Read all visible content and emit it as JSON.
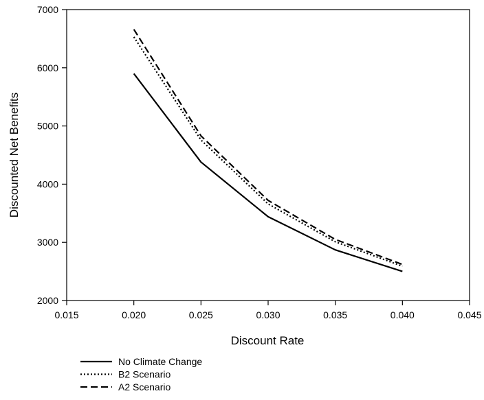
{
  "chart_data": {
    "type": "line",
    "title": "",
    "xlabel": "Discount Rate",
    "ylabel": "Discounted Net Benefits",
    "xlim": [
      0.015,
      0.045
    ],
    "ylim": [
      2000,
      7000
    ],
    "xticks": [
      "0.015",
      "0.020",
      "0.025",
      "0.030",
      "0.035",
      "0.040",
      "0.045"
    ],
    "yticks": [
      "2000",
      "3000",
      "4000",
      "5000",
      "6000",
      "7000"
    ],
    "grid": false,
    "legend_position": "bottom-left",
    "x": [
      0.02,
      0.025,
      0.03,
      0.035,
      0.04
    ],
    "series": [
      {
        "name": "No Climate Change",
        "style": "solid",
        "color": "#000000",
        "values": [
          5900,
          4380,
          3440,
          2870,
          2500
        ]
      },
      {
        "name": "B2 Scenario",
        "style": "dotted",
        "color": "#000000",
        "values": [
          6530,
          4760,
          3660,
          3010,
          2590
        ]
      },
      {
        "name": "A2 Scenario",
        "style": "dashed",
        "color": "#000000",
        "values": [
          6660,
          4830,
          3720,
          3050,
          2620
        ]
      }
    ]
  }
}
